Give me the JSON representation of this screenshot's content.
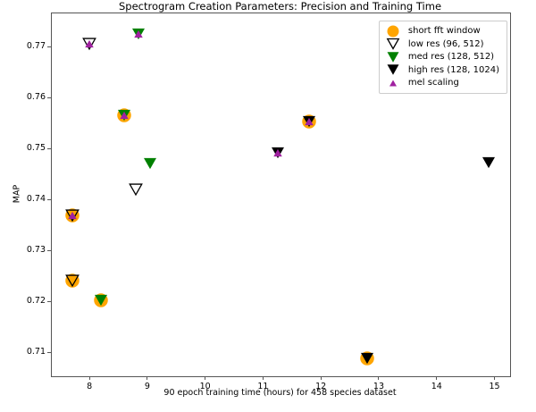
{
  "chart_data": {
    "type": "scatter",
    "title": "Spectrogram Creation Parameters: Precision and Training Time",
    "xlabel": "90 epoch training time (hours) for 458 species dataset",
    "ylabel": "MAP",
    "xlim": [
      7.35,
      15.27
    ],
    "ylim": [
      0.7053,
      0.7765
    ],
    "xticks": [
      8,
      9,
      10,
      11,
      12,
      13,
      14,
      15
    ],
    "yticks": [
      0.71,
      0.72,
      0.73,
      0.74,
      0.75,
      0.76,
      0.77
    ],
    "grid": false,
    "legend_position": "upper right",
    "colors": {
      "short_fft": "#FFA500",
      "low_res_edge": "#000000",
      "med_res": "#008000",
      "high_res": "#000000",
      "mel": "#A021A0",
      "spine": "#555555",
      "legend_border": "#CCCCCC"
    },
    "series": [
      {
        "key": "short_fft",
        "label": "short fft window",
        "marker": "circle",
        "fill": "#FFA500",
        "edge": "none",
        "size": 15.5,
        "legend_size": 13
      },
      {
        "key": "low_res",
        "label": "low res (96, 512)",
        "marker": "triangle_down",
        "fill": "none",
        "edge": "#000000",
        "size": 13.5,
        "legend_size": 12.5
      },
      {
        "key": "med_res",
        "label": "med res (128, 512)",
        "marker": "triangle_down",
        "fill": "#008000",
        "edge": "none",
        "size": 14,
        "legend_size": 13
      },
      {
        "key": "high_res",
        "label": "high res (128, 1024)",
        "marker": "triangle_down",
        "fill": "#000000",
        "edge": "none",
        "size": 14,
        "legend_size": 13
      },
      {
        "key": "mel",
        "label": "mel scaling",
        "marker": "triangle_up",
        "fill": "#A021A0",
        "edge": "none",
        "size": 9.5,
        "legend_size": 8
      }
    ],
    "points": [
      {
        "x": 8.0,
        "y": 0.7705,
        "markers": [
          "low_res",
          "mel"
        ]
      },
      {
        "x": 8.85,
        "y": 0.7725,
        "markers": [
          "med_res",
          "mel"
        ]
      },
      {
        "x": 8.6,
        "y": 0.7565,
        "markers": [
          "short_fft",
          "med_res",
          "mel"
        ]
      },
      {
        "x": 9.05,
        "y": 0.747,
        "markers": [
          "med_res"
        ]
      },
      {
        "x": 8.8,
        "y": 0.742,
        "markers": [
          "low_res"
        ]
      },
      {
        "x": 7.7,
        "y": 0.7368,
        "markers": [
          "short_fft",
          "low_res",
          "mel"
        ]
      },
      {
        "x": 7.7,
        "y": 0.724,
        "markers": [
          "short_fft",
          "low_res"
        ]
      },
      {
        "x": 8.2,
        "y": 0.7202,
        "markers": [
          "short_fft",
          "med_res"
        ]
      },
      {
        "x": 11.8,
        "y": 0.7552,
        "markers": [
          "short_fft",
          "high_res",
          "mel"
        ]
      },
      {
        "x": 11.25,
        "y": 0.7492,
        "markers": [
          "high_res",
          "mel"
        ]
      },
      {
        "x": 12.8,
        "y": 0.7088,
        "markers": [
          "short_fft",
          "high_res"
        ]
      },
      {
        "x": 14.9,
        "y": 0.7472,
        "markers": [
          "high_res"
        ]
      }
    ]
  }
}
